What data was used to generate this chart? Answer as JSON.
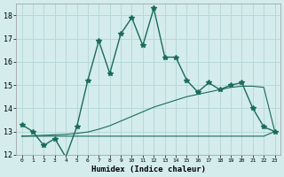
{
  "xlabel": "Humidex (Indice chaleur)",
  "bg_color": "#d4ecec",
  "grid_color": "#b8d8d8",
  "line_color": "#1a6b5a",
  "x_values": [
    0,
    1,
    2,
    3,
    4,
    5,
    6,
    7,
    8,
    9,
    10,
    11,
    12,
    13,
    14,
    15,
    16,
    17,
    18,
    19,
    20,
    21,
    22,
    23
  ],
  "y_main": [
    13.3,
    13.0,
    12.4,
    12.7,
    11.9,
    13.2,
    15.2,
    16.9,
    15.5,
    17.2,
    17.9,
    16.7,
    18.3,
    16.2,
    16.2,
    15.2,
    14.7,
    15.1,
    14.8,
    15.0,
    15.1,
    14.0,
    13.2,
    13.0
  ],
  "y_rising": [
    12.8,
    12.82,
    12.84,
    12.86,
    12.88,
    12.92,
    12.98,
    13.1,
    13.25,
    13.45,
    13.65,
    13.85,
    14.05,
    14.2,
    14.35,
    14.5,
    14.6,
    14.7,
    14.8,
    14.9,
    14.95,
    14.95,
    14.9,
    13.0
  ],
  "y_flat": [
    12.8,
    12.8,
    12.8,
    12.8,
    12.8,
    12.8,
    12.8,
    12.8,
    12.8,
    12.8,
    12.8,
    12.8,
    12.8,
    12.8,
    12.8,
    12.8,
    12.8,
    12.8,
    12.8,
    12.8,
    12.8,
    12.8,
    12.8,
    13.0
  ],
  "ylim": [
    12,
    18.5
  ],
  "xlim": [
    -0.5,
    23.5
  ],
  "yticks": [
    12,
    13,
    14,
    15,
    16,
    17,
    18
  ],
  "xticks": [
    0,
    1,
    2,
    3,
    4,
    5,
    6,
    7,
    8,
    9,
    10,
    11,
    12,
    13,
    14,
    15,
    16,
    17,
    18,
    19,
    20,
    21,
    22,
    23
  ]
}
